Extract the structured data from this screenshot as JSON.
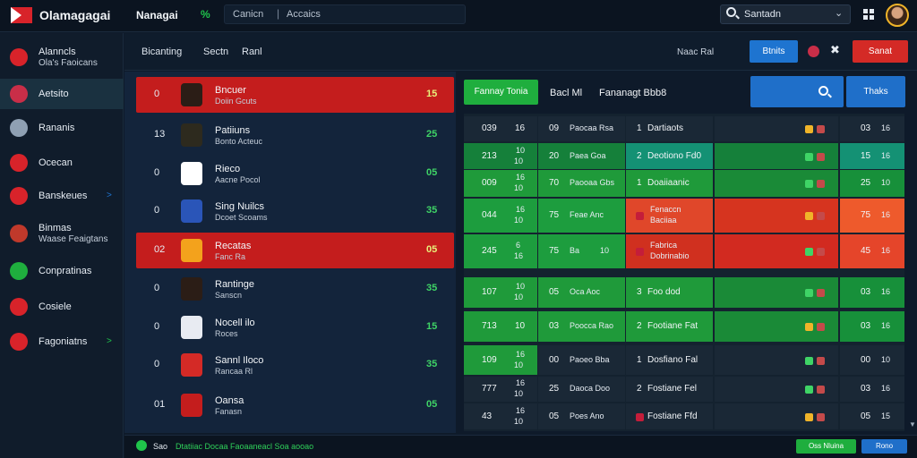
{
  "header": {
    "app_title": "Olamagagai",
    "nav_title": "Nanagai",
    "nav_badge": "%",
    "crumb_1": "Canicn",
    "crumb_sep": "|",
    "crumb_2": "Accaics",
    "search_value": "Santadn"
  },
  "sidebar": {
    "items": [
      {
        "label": "Alanncls",
        "sub": "Ola's Faoicans",
        "icon_color": "#d8232a",
        "icon": "shield-icon"
      },
      {
        "label": "Aetsito",
        "sub": "",
        "icon_color": "#c92e48",
        "icon": "team-crest-icon",
        "active": true
      },
      {
        "label": "Rananis",
        "sub": "",
        "icon_color": "#8fa0b3",
        "icon": "stadium-icon"
      },
      {
        "label": "Ocecan",
        "sub": "",
        "icon_color": "#d8232a",
        "icon": "club-badge-icon"
      },
      {
        "label": "Banskeues",
        "sub": "",
        "icon_color": "#d8232a",
        "icon": "flag-icon",
        "arrow": ">"
      },
      {
        "label": "Binmas",
        "sub": "Waase Feaigtans",
        "icon_color": "#c0392b",
        "icon": "emblem-icon"
      },
      {
        "label": "Conpratinas",
        "sub": "",
        "icon_color": "#1fae3e",
        "icon": "league-icon"
      },
      {
        "label": "Cosiele",
        "sub": "",
        "icon_color": "#d8232a",
        "icon": "crest-icon"
      },
      {
        "label": "Fagoniatns",
        "sub": "",
        "icon_color": "#d8232a",
        "icon": "ball-icon",
        "arrow": ">"
      }
    ]
  },
  "tabs": {
    "items": [
      "Bicanting",
      "Sectn",
      "Ranl"
    ],
    "extra": "Naac Ral",
    "blue_button": "Btnits",
    "red_button": "Sanat"
  },
  "standings": [
    {
      "pos": "0",
      "name": "Bncuer",
      "sub": "Doiin Gcuts",
      "pts": "15",
      "red": true,
      "crest": "#2b1d16"
    },
    {
      "pos": "13",
      "name": "Patiiuns",
      "sub": "Bonto Acteuc",
      "pts": "25",
      "crest": "#2d2a1e"
    },
    {
      "pos": "0",
      "name": "Rieco",
      "sub": "Aacne Pocol",
      "pts": "05",
      "crest": "#ffffff"
    },
    {
      "pos": "0",
      "name": "Sing Nuilcs",
      "sub": "Dcoet Scoams",
      "pts": "35",
      "crest": "#2a55b8"
    },
    {
      "pos": "02",
      "name": "Recatas",
      "sub": "Fanc Ra",
      "pts": "05",
      "red": true,
      "crest": "#f3a21c"
    },
    {
      "pos": "0",
      "name": "Rantinge",
      "sub": "Sanscn",
      "pts": "35",
      "crest": "#2b1d16"
    },
    {
      "pos": "0",
      "name": "Nocell ilo",
      "sub": "Roces",
      "pts": "15",
      "crest": "#e8ebf2"
    },
    {
      "pos": "0",
      "name": "Sannl Iloco",
      "sub": "Rancaa Rl",
      "pts": "35",
      "crest": "#d42a26"
    },
    {
      "pos": "01",
      "name": "Oansa",
      "sub": "Fanasn",
      "pts": "05",
      "crest": "#c41d1d"
    }
  ],
  "matches_header": {
    "green_button": "Fannay Tonia",
    "col1": "Bacl Ml",
    "col2": "Fananagt Bbb8",
    "right_button": "Thaks"
  },
  "matches": [
    {
      "a": "039",
      "b": "16",
      "c": "09",
      "d": "Paocaa Rsa",
      "e": "1",
      "f": "Dartiaots",
      "g": "03",
      "h": "16",
      "theme": "dark"
    },
    {
      "a": "213",
      "b": "10",
      "b2": "10",
      "c": "20",
      "d": "Paea Goa",
      "e": "2",
      "f": "Deotiono Fd0",
      "g": "15",
      "h": "16",
      "theme": "green-teal"
    },
    {
      "a": "009",
      "b": "16",
      "b2": "10",
      "c": "70",
      "d": "Paooaa Gbs",
      "e": "1",
      "f": "Doaiiaanic",
      "g": "25",
      "h": "10",
      "theme": "green"
    },
    {
      "a": "044",
      "b": "16",
      "b2": "10",
      "c": "75",
      "d": "Feae Anc",
      "e": "",
      "f": "Fenaccn",
      "f2": "Baciiaa",
      "g": "75",
      "h": "16",
      "theme": "red"
    },
    {
      "a": "245",
      "b": "6",
      "b2": "16",
      "c": "75",
      "d": "Ba",
      "d2": "10",
      "e": "",
      "f": "Fabrica",
      "f2": "Dobrinabio",
      "g": "45",
      "h": "16",
      "theme": "green-red"
    },
    {
      "a": "107",
      "b": "10",
      "b2": "10",
      "c": "05",
      "d": "Oca Aoc",
      "e": "3",
      "f": "Foo dod",
      "g": "03",
      "h": "16",
      "theme": "green"
    },
    {
      "a": "713",
      "b": "10",
      "c": "03",
      "d": "Poocca Rao",
      "e": "2",
      "f": "Footiane Fat",
      "g": "03",
      "h": "16",
      "theme": "green"
    },
    {
      "a": "109",
      "b": "16",
      "b2": "10",
      "c": "00",
      "d": "Paoeo Bba",
      "e": "1",
      "f": "Dosfiano Fal",
      "g": "00",
      "h": "10",
      "theme": "green-dark"
    },
    {
      "a": "777",
      "b": "16",
      "b2": "10",
      "c": "25",
      "d": "Daoca Doo",
      "e": "2",
      "f": "Fostiane Fel",
      "g": "03",
      "h": "16",
      "theme": "dark"
    },
    {
      "a": "43",
      "b": "16",
      "b2": "10",
      "c": "05",
      "d": "Poes Ano",
      "e": "",
      "f": "Fostiane Ffd",
      "g": "05",
      "h": "15",
      "theme": "dark"
    }
  ],
  "footer": {
    "status_label": "Sao",
    "status_text": "Dtatiiac Docaa Faoaaneacl Soa aooao",
    "green_button": "Oss Nluina",
    "blue_button": "Rono"
  }
}
